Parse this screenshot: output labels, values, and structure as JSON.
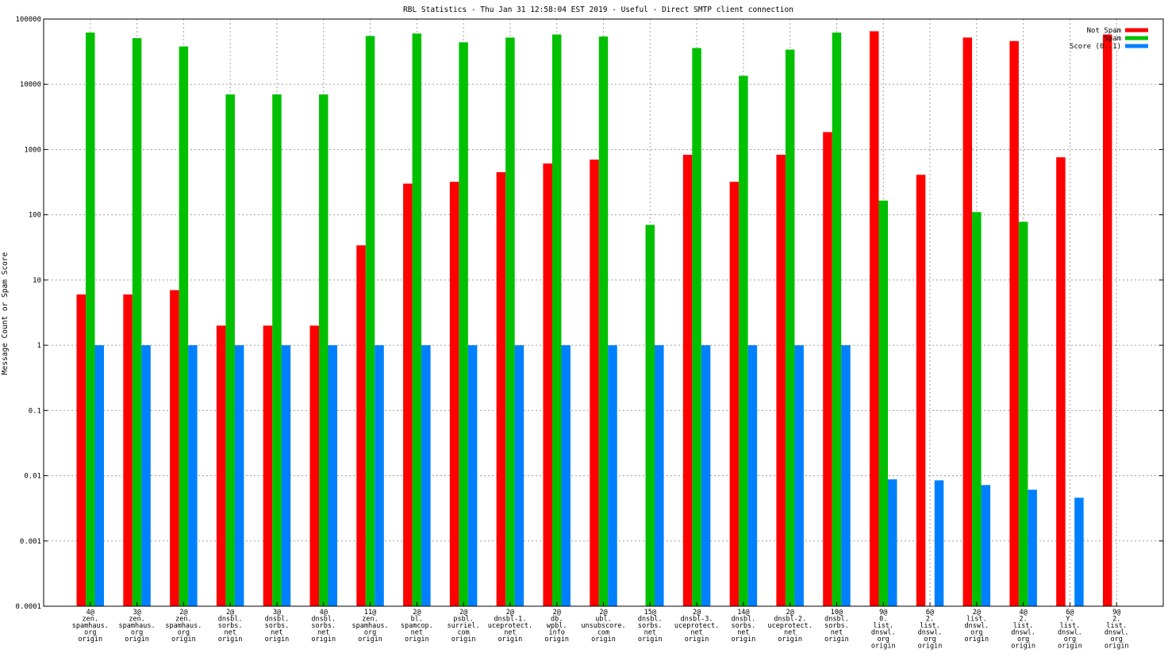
{
  "chart_data": {
    "type": "bar",
    "title": "RBL Statistics - Thu Jan 31 12:58:04 EST 2019 - Useful - Direct SMTP client connection",
    "xlabel": "",
    "ylabel": "Message Count or Spam Score",
    "yscale": "log",
    "ylim": [
      0.0001,
      100000
    ],
    "yticks": [
      "0.0001",
      "0.001",
      "0.01",
      "0.1",
      "1",
      "10",
      "100",
      "1000",
      "10000",
      "100000"
    ],
    "grid": true,
    "legend_position": "top-right",
    "categories": [
      [
        "4@",
        "zen.",
        "spamhaus.",
        "org",
        "origin"
      ],
      [
        "3@",
        "zen.",
        "spamhaus.",
        "org",
        "origin"
      ],
      [
        "2@",
        "zen.",
        "spamhaus.",
        "org",
        "origin"
      ],
      [
        "2@",
        "dnsbl.",
        "sorbs.",
        "net",
        "origin"
      ],
      [
        "3@",
        "dnsbl.",
        "sorbs.",
        "net",
        "origin"
      ],
      [
        "4@",
        "dnsbl.",
        "sorbs.",
        "net",
        "origin"
      ],
      [
        "11@",
        "zen.",
        "spamhaus.",
        "org",
        "origin"
      ],
      [
        "2@",
        "bl.",
        "spamcop.",
        "net",
        "origin"
      ],
      [
        "2@",
        "psbl.",
        "surriel.",
        "com",
        "origin"
      ],
      [
        "2@",
        "dnsbl-1.",
        "uceprotect.",
        "net",
        "origin"
      ],
      [
        "2@",
        "db.",
        "wpbl.",
        "info",
        "origin"
      ],
      [
        "2@",
        "ubl.",
        "unsubscore.",
        "com",
        "origin"
      ],
      [
        "15@",
        "dnsbl.",
        "sorbs.",
        "net",
        "origin"
      ],
      [
        "2@",
        "dnsbl-3.",
        "uceprotect.",
        "net",
        "origin"
      ],
      [
        "14@",
        "dnsbl.",
        "sorbs.",
        "net",
        "origin"
      ],
      [
        "2@",
        "dnsbl-2.",
        "uceprotect.",
        "net",
        "origin"
      ],
      [
        "10@",
        "dnsbl.",
        "sorbs.",
        "net",
        "origin"
      ],
      [
        "9@",
        "0.",
        "list.",
        "dnswl.",
        "org",
        "origin"
      ],
      [
        "6@",
        "2.",
        "list.",
        "dnswl.",
        "org",
        "origin"
      ],
      [
        "2@",
        "list.",
        "dnswl.",
        "org",
        "origin"
      ],
      [
        "4@",
        "2.",
        "list.",
        "dnswl.",
        "org",
        "origin"
      ],
      [
        "6@",
        "Y.",
        "list.",
        "dnswl.",
        "org",
        "origin"
      ],
      [
        "9@",
        "2.",
        "list.",
        "dnswl.",
        "org",
        "origin"
      ]
    ],
    "series": [
      {
        "name": "Not Spam",
        "color": "#ff0000",
        "values": [
          6,
          6,
          7,
          2,
          2,
          2,
          34,
          300,
          320,
          450,
          610,
          700,
          null,
          830,
          320,
          830,
          1850,
          65000,
          410,
          52000,
          46000,
          760,
          58000
        ]
      },
      {
        "name": "Spam",
        "color": "#00c000",
        "values": [
          62000,
          51000,
          38000,
          7000,
          7000,
          7000,
          55000,
          60000,
          44000,
          52000,
          58000,
          54000,
          70,
          36000,
          13500,
          34000,
          62000,
          165,
          null,
          110,
          78,
          null,
          null
        ]
      },
      {
        "name": "Score (0..1)",
        "color": "#0080ff",
        "values": [
          1,
          1,
          1,
          1,
          1,
          1,
          1,
          1,
          1,
          1,
          1,
          1,
          1,
          1,
          1,
          1,
          1,
          0.0088,
          0.0085,
          0.0072,
          0.0061,
          0.0046,
          null
        ]
      }
    ]
  }
}
